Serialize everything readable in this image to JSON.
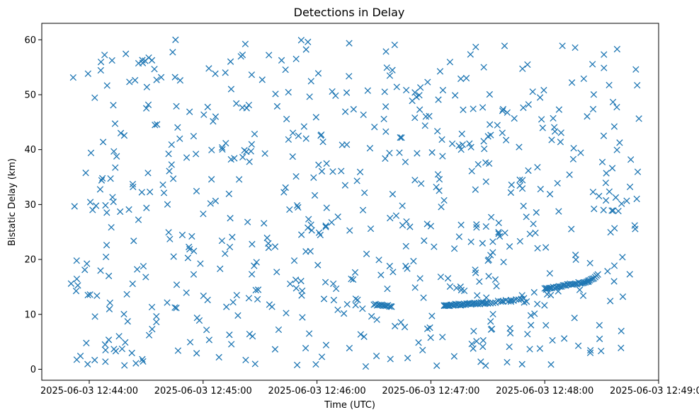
{
  "chart_data": {
    "type": "scatter",
    "title": "Detections in Delay",
    "xlabel": "Time (UTC)",
    "ylabel": "Bistatic Delay (km)",
    "marker": "x",
    "color": "#1f77b4",
    "grid": false,
    "xlim": [
      "2025-06-03 12:43:35",
      "2025-06-03 12:49:00"
    ],
    "ylim": [
      -2,
      63
    ],
    "x_ticks": [
      "2025-06-03 12:44:00",
      "2025-06-03 12:45:00",
      "2025-06-03 12:46:00",
      "2025-06-03 12:47:00",
      "2025-06-03 12:48:00",
      "2025-06-03 12:49:00"
    ],
    "y_ticks": [
      0,
      10,
      20,
      30,
      40,
      50,
      60
    ],
    "time_base": "2025-06-03 12:43:00",
    "noise": {
      "count": 640,
      "t_range": [
        "2025-06-03 12:43:50",
        "2025-06-03 12:48:50"
      ],
      "delay_range": [
        0.5,
        60
      ]
    },
    "tracks": [
      {
        "t_start": "2025-06-03 12:46:30",
        "t_end": "2025-06-03 12:46:39",
        "delay_start": 11.8,
        "delay_end": 11.5,
        "points": 12
      },
      {
        "t_start": "2025-06-03 12:47:07",
        "t_end": "2025-06-03 12:47:30",
        "delay_start": 11.6,
        "delay_end": 12.1,
        "points": 40
      },
      {
        "t_start": "2025-06-03 12:47:30",
        "t_end": "2025-06-03 12:47:49",
        "delay_start": 12.1,
        "delay_end": 12.8,
        "points": 15
      },
      {
        "t_start": "2025-06-03 12:48:00",
        "t_end": "2025-06-03 12:48:23",
        "delay_start": 14.6,
        "delay_end": 16.0,
        "points": 32
      },
      {
        "t_start": "2025-06-03 12:48:23",
        "t_end": "2025-06-03 12:48:28",
        "delay_start": 16.0,
        "delay_end": 17.2,
        "points": 8
      }
    ]
  }
}
